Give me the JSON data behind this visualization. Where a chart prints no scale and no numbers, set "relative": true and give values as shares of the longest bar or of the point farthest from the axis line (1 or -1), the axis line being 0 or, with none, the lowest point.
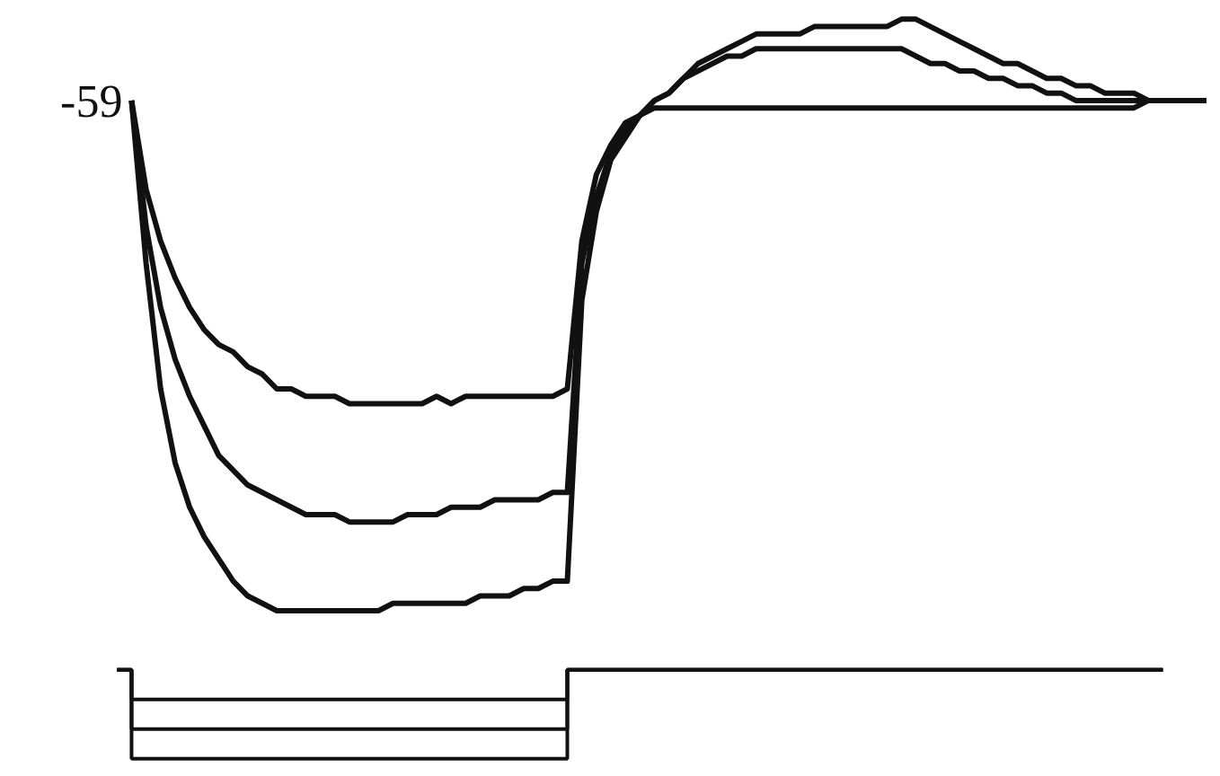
{
  "chart_data": {
    "type": "line",
    "relative": true,
    "categories": [
      null,
      null,
      null,
      null,
      null,
      null,
      null,
      null,
      null,
      null,
      null,
      null,
      null,
      null,
      null,
      null,
      null,
      null,
      null,
      null,
      null,
      null,
      null,
      null,
      null,
      null,
      null,
      null,
      null,
      null,
      null,
      null,
      null,
      null,
      null,
      null,
      null,
      null,
      null,
      null,
      null,
      null,
      null,
      null,
      null,
      null,
      null,
      null,
      null,
      null,
      null,
      null,
      null,
      null,
      null,
      null,
      null,
      null,
      null,
      null,
      null,
      null,
      null,
      null,
      null,
      null,
      null,
      null,
      null,
      null,
      null,
      null,
      null,
      null,
      null,
      null
    ],
    "series": [
      {
        "color": "#111111",
        "values": [
          null,
          0.89,
          0.77,
          0.7,
          0.65,
          0.61,
          0.58,
          0.56,
          0.55,
          0.53,
          0.52,
          0.5,
          0.5,
          0.49,
          0.49,
          0.49,
          0.48,
          0.48,
          0.48,
          0.48,
          0.48,
          0.48,
          0.49,
          0.48,
          0.49,
          0.49,
          0.49,
          0.49,
          0.49,
          0.49,
          0.49,
          0.5,
          0.7,
          0.79,
          0.83,
          0.86,
          0.87,
          0.88,
          0.88,
          0.88,
          0.88,
          0.88,
          0.88,
          0.88,
          0.88,
          0.88,
          0.88,
          0.88,
          0.88,
          0.88,
          0.88,
          0.88,
          0.88,
          0.88,
          0.88,
          0.88,
          0.88,
          0.88,
          0.88,
          0.88,
          0.88,
          0.88,
          0.88,
          0.88,
          0.88,
          0.88,
          0.88,
          0.88,
          0.88,
          0.88,
          0.88,
          0.89,
          0.89,
          0.89,
          0.89,
          0.89
        ]
      },
      {
        "color": "#111111",
        "values": [
          null,
          0.89,
          0.72,
          0.61,
          0.54,
          0.49,
          0.45,
          0.41,
          0.39,
          0.37,
          0.36,
          0.35,
          0.34,
          0.33,
          0.33,
          0.33,
          0.32,
          0.32,
          0.32,
          0.32,
          0.33,
          0.33,
          0.33,
          0.34,
          0.34,
          0.34,
          0.35,
          0.35,
          0.35,
          0.35,
          0.36,
          0.36,
          0.67,
          0.76,
          0.82,
          0.85,
          0.87,
          0.89,
          0.9,
          0.92,
          0.93,
          0.94,
          0.95,
          0.95,
          0.96,
          0.96,
          0.96,
          0.96,
          0.96,
          0.96,
          0.96,
          0.96,
          0.96,
          0.96,
          0.96,
          0.95,
          0.94,
          0.94,
          0.93,
          0.93,
          0.92,
          0.92,
          0.91,
          0.91,
          0.9,
          0.9,
          0.89,
          0.89,
          0.89,
          0.89,
          0.89,
          0.89,
          0.89,
          0.89,
          0.89,
          0.89
        ]
      },
      {
        "color": "#111111",
        "values": [
          null,
          0.89,
          0.67,
          0.5,
          0.4,
          0.34,
          0.3,
          0.27,
          0.24,
          0.22,
          0.21,
          0.2,
          0.2,
          0.2,
          0.2,
          0.2,
          0.2,
          0.2,
          0.2,
          0.21,
          0.21,
          0.21,
          0.21,
          0.21,
          0.21,
          0.22,
          0.22,
          0.22,
          0.23,
          0.23,
          0.24,
          0.24,
          0.62,
          0.74,
          0.81,
          0.84,
          0.87,
          0.89,
          0.9,
          0.92,
          0.94,
          0.95,
          0.96,
          0.97,
          0.98,
          0.98,
          0.98,
          0.98,
          0.99,
          0.99,
          0.99,
          0.99,
          0.99,
          0.99,
          1.0,
          1.0,
          0.99,
          0.98,
          0.97,
          0.96,
          0.95,
          0.94,
          0.94,
          0.93,
          0.92,
          0.92,
          0.91,
          0.91,
          0.9,
          0.9,
          0.9,
          0.89,
          0.89,
          0.89,
          0.89,
          0.89
        ]
      },
      {
        "type": "step",
        "color": "#111111",
        "values": [
          0.12,
          0.08,
          0.08,
          0.08,
          0.08,
          0.08,
          0.08,
          0.08,
          0.08,
          0.08,
          0.08,
          0.08,
          0.08,
          0.08,
          0.08,
          0.08,
          0.08,
          0.08,
          0.08,
          0.08,
          0.08,
          0.08,
          0.08,
          0.08,
          0.08,
          0.08,
          0.08,
          0.08,
          0.08,
          0.08,
          0.08,
          0.12,
          0.12,
          0.12,
          0.12,
          0.12,
          0.12,
          0.12,
          0.12,
          0.12,
          0.12,
          0.12,
          0.12,
          0.12,
          0.12,
          0.12,
          0.12,
          0.12,
          0.12,
          0.12,
          0.12,
          0.12,
          0.12,
          0.12,
          0.12,
          0.12,
          0.12,
          0.12,
          0.12,
          0.12,
          0.12,
          0.12,
          0.12,
          0.12,
          0.12,
          0.12,
          0.12,
          0.12,
          0.12,
          0.12,
          0.12,
          0.12,
          0.12,
          null,
          null,
          null
        ]
      },
      {
        "type": "step",
        "color": "#111111",
        "values": [
          0.12,
          0.04,
          0.04,
          0.04,
          0.04,
          0.04,
          0.04,
          0.04,
          0.04,
          0.04,
          0.04,
          0.04,
          0.04,
          0.04,
          0.04,
          0.04,
          0.04,
          0.04,
          0.04,
          0.04,
          0.04,
          0.04,
          0.04,
          0.04,
          0.04,
          0.04,
          0.04,
          0.04,
          0.04,
          0.04,
          0.04,
          0.12,
          0.12,
          0.12,
          0.12,
          0.12,
          0.12,
          0.12,
          0.12,
          0.12,
          0.12,
          0.12,
          0.12,
          0.12,
          0.12,
          0.12,
          0.12,
          0.12,
          0.12,
          0.12,
          0.12,
          0.12,
          0.12,
          0.12,
          0.12,
          0.12,
          0.12,
          0.12,
          0.12,
          0.12,
          0.12,
          0.12,
          0.12,
          0.12,
          0.12,
          0.12,
          0.12,
          0.12,
          0.12,
          0.12,
          0.12,
          0.12,
          0.12,
          null,
          null,
          null
        ]
      },
      {
        "type": "step",
        "color": "#111111",
        "values": [
          0.12,
          0.0,
          0.0,
          0.0,
          0.0,
          0.0,
          0.0,
          0.0,
          0.0,
          0.0,
          0.0,
          0.0,
          0.0,
          0.0,
          0.0,
          0.0,
          0.0,
          0.0,
          0.0,
          0.0,
          0.0,
          0.0,
          0.0,
          0.0,
          0.0,
          0.0,
          0.0,
          0.0,
          0.0,
          0.0,
          0.0,
          0.12,
          0.12,
          0.12,
          0.12,
          0.12,
          0.12,
          0.12,
          0.12,
          0.12,
          0.12,
          0.12,
          0.12,
          0.12,
          0.12,
          0.12,
          0.12,
          0.12,
          0.12,
          0.12,
          0.12,
          0.12,
          0.12,
          0.12,
          0.12,
          0.12,
          0.12,
          0.12,
          0.12,
          0.12,
          0.12,
          0.12,
          0.12,
          0.12,
          0.12,
          0.12,
          0.12,
          0.12,
          0.12,
          0.12,
          0.12,
          0.12,
          0.12,
          null,
          null,
          null
        ]
      }
    ],
    "annotations": [
      "-59"
    ]
  }
}
